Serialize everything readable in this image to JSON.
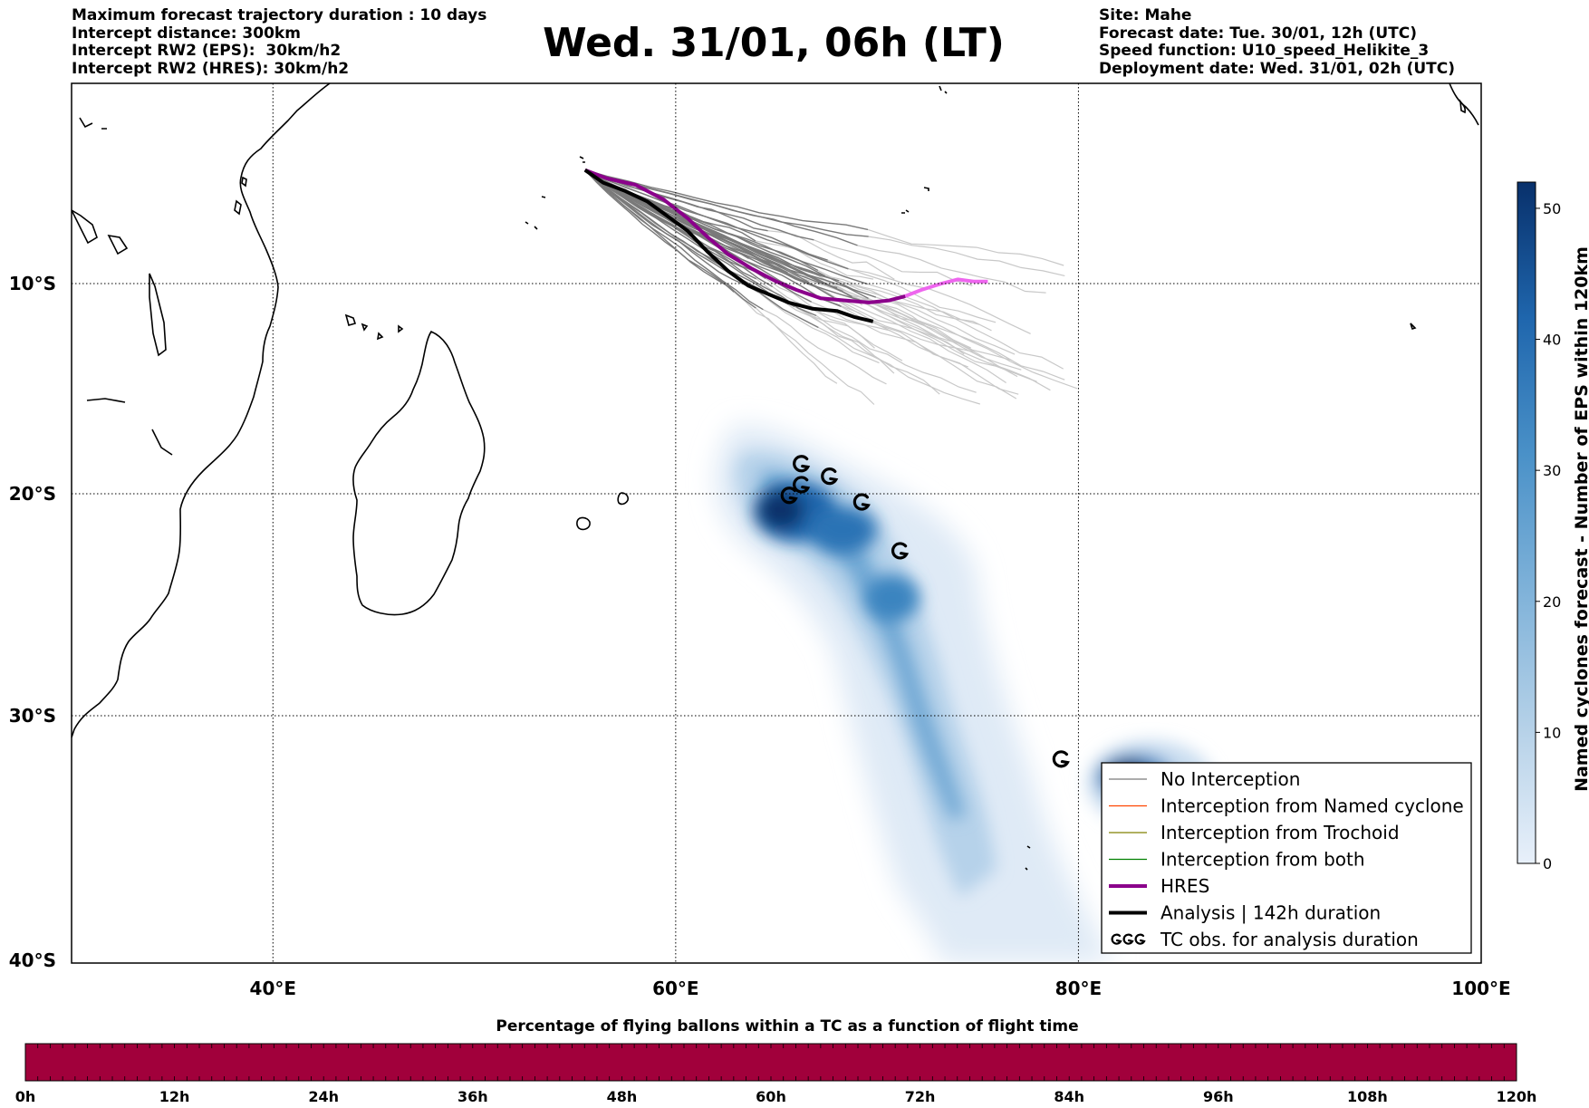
{
  "header": {
    "left": [
      "Maximum forecast trajectory duration : 10 days",
      "Intercept distance: 300km",
      "Intercept RW2 (EPS):  30km/h2",
      "Intercept RW2 (HRES): 30km/h2"
    ],
    "title": "Wed. 31/01, 06h (LT)",
    "right": [
      "Site: Mahe",
      "Forecast date: Tue. 30/01, 12h (UTC)",
      "Speed function: U10_speed_Helikite_3",
      "Deployment date: Wed. 31/01, 02h (UTC)"
    ]
  },
  "map": {
    "lon_range": [
      30,
      100
    ],
    "lat_range": [
      -40,
      1
    ],
    "lat_labels": [
      {
        "lat": -10,
        "label": "10°S"
      },
      {
        "lat": -20,
        "label": "20°S"
      },
      {
        "lat": -30,
        "label": "30°S"
      },
      {
        "lat": -40,
        "label": "40°S"
      }
    ],
    "lon_labels": [
      {
        "lon": 40,
        "label": "40°E"
      },
      {
        "lon": 60,
        "label": "60°E"
      },
      {
        "lon": 80,
        "label": "80°E"
      },
      {
        "lon": 100,
        "label": "100°E"
      }
    ],
    "grid_lons": [
      40,
      60,
      80
    ],
    "grid_lats": [
      -10,
      -20,
      -30
    ]
  },
  "colors": {
    "eps_member_dark": "#7a7a7a",
    "eps_member_light": "#c8c8c8",
    "hres": "#8b008b",
    "hres_late": "#ee66ee",
    "analysis": "#000000",
    "named_cyclone": "#ff4500",
    "trochoid": "#808000",
    "both": "#008000",
    "density_max": "#08306b",
    "timeline_bar": "#a1003b"
  },
  "site": {
    "lon": 55.5,
    "lat": -4.6
  },
  "tracks": {
    "hres": [
      [
        55.5,
        -4.6
      ],
      [
        56.6,
        -5.0
      ],
      [
        58,
        -5.3
      ],
      [
        59.4,
        -6.0
      ],
      [
        60.6,
        -6.9
      ],
      [
        61.6,
        -7.8
      ],
      [
        62.6,
        -8.6
      ],
      [
        63.8,
        -9.3
      ],
      [
        65,
        -9.9
      ],
      [
        66,
        -10.3
      ],
      [
        67.2,
        -10.7
      ],
      [
        68.4,
        -10.8
      ],
      [
        69.6,
        -10.9
      ],
      [
        70.6,
        -10.8
      ],
      [
        71.4,
        -10.6
      ]
    ],
    "hres_late": [
      [
        71.4,
        -10.6
      ],
      [
        72.2,
        -10.3
      ],
      [
        73.2,
        -10.0
      ],
      [
        74,
        -9.8
      ],
      [
        74.8,
        -9.9
      ],
      [
        75.5,
        -9.9
      ]
    ],
    "analysis": [
      [
        55.5,
        -4.6
      ],
      [
        56.4,
        -5.2
      ],
      [
        57.5,
        -5.6
      ],
      [
        58.6,
        -6.1
      ],
      [
        59.6,
        -6.8
      ],
      [
        60.6,
        -7.5
      ],
      [
        61.6,
        -8.5
      ],
      [
        62.6,
        -9.4
      ],
      [
        63.6,
        -10.1
      ],
      [
        64.6,
        -10.5
      ],
      [
        65.6,
        -10.9
      ],
      [
        66.8,
        -11.2
      ],
      [
        68,
        -11.3
      ],
      [
        68.9,
        -11.6
      ],
      [
        69.8,
        -11.8
      ]
    ]
  },
  "tc_obs": [
    {
      "lon": 65.6,
      "lat": -20.1
    },
    {
      "lon": 66.2,
      "lat": -19.6
    },
    {
      "lon": 66.2,
      "lat": -18.6
    },
    {
      "lon": 67.6,
      "lat": -19.2
    },
    {
      "lon": 69.2,
      "lat": -20.4
    },
    {
      "lon": 71.1,
      "lat": -22.6
    },
    {
      "lon": 79.1,
      "lat": -31.8
    }
  ],
  "legend": {
    "items": [
      {
        "label": "No Interception",
        "style": "thin",
        "color": "#7a7a7a"
      },
      {
        "label": "Interception from Named cyclone",
        "style": "thin",
        "color": "#ff4500"
      },
      {
        "label": "Interception from Trochoid",
        "style": "thin",
        "color": "#808000"
      },
      {
        "label": "Interception from both",
        "style": "thin",
        "color": "#008000"
      },
      {
        "label": "HRES",
        "style": "thick",
        "color": "#8b008b"
      },
      {
        "label": "Analysis | 142h duration",
        "style": "thick",
        "color": "#000000"
      },
      {
        "label": "TC obs. for analysis duration",
        "style": "symbol",
        "color": "#000000"
      }
    ]
  },
  "colorbar": {
    "title": "Named cyclones forecast - Number of EPS within 120km",
    "min": 0,
    "max": 52,
    "ticks": [
      0,
      10,
      20,
      30,
      40,
      50
    ],
    "color_min": "#e6eff9",
    "color_max": "#08306b"
  },
  "timeline": {
    "title": "Percentage of flying ballons within a TC as a function of flight time",
    "ticks": [
      "0h",
      "12h",
      "24h",
      "36h",
      "48h",
      "60h",
      "72h",
      "84h",
      "96h",
      "108h",
      "120h"
    ],
    "fill_fraction": 1.0
  }
}
